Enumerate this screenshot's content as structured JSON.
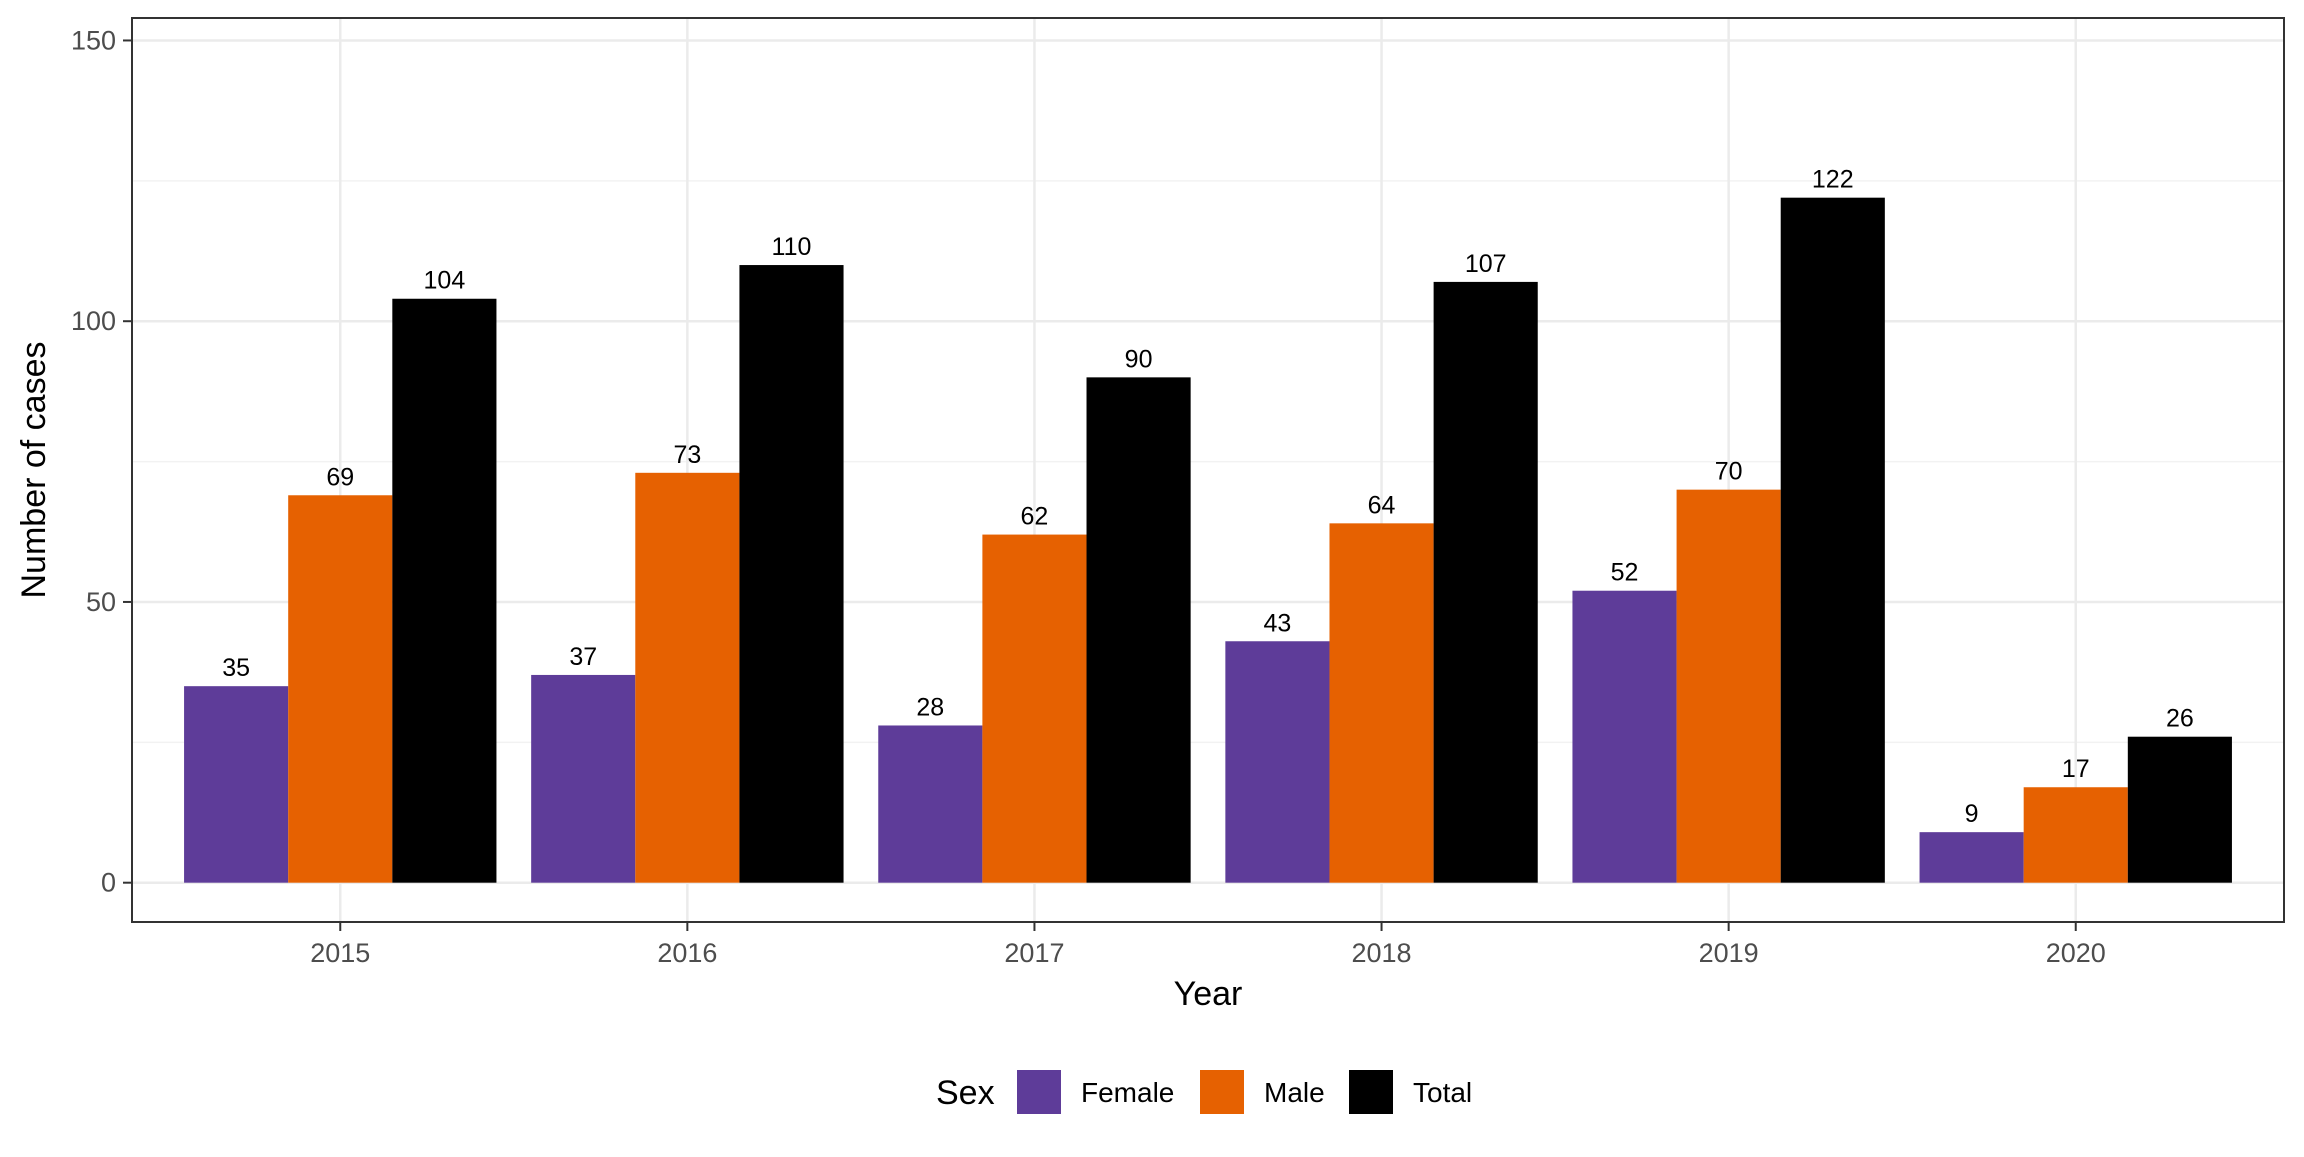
{
  "chart_data": {
    "type": "bar",
    "title": "",
    "xlabel": "Year",
    "ylabel": "Number of cases",
    "categories": [
      "2015",
      "2016",
      "2017",
      "2018",
      "2019",
      "2020"
    ],
    "series": [
      {
        "name": "Female",
        "color": "#5e3c99",
        "values": [
          35,
          37,
          28,
          43,
          52,
          9
        ]
      },
      {
        "name": "Male",
        "color": "#e66101",
        "values": [
          69,
          73,
          62,
          64,
          70,
          17
        ]
      },
      {
        "name": "Total",
        "color": "#000000",
        "values": [
          104,
          110,
          90,
          107,
          122,
          26
        ]
      }
    ],
    "ylim": [
      -7,
      154
    ],
    "yticks": [
      0,
      50,
      100,
      150
    ],
    "ytick_labels": [
      "0",
      "50",
      "100",
      "150"
    ],
    "grid": true,
    "legend": {
      "title": "Sex",
      "position": "bottom"
    }
  }
}
